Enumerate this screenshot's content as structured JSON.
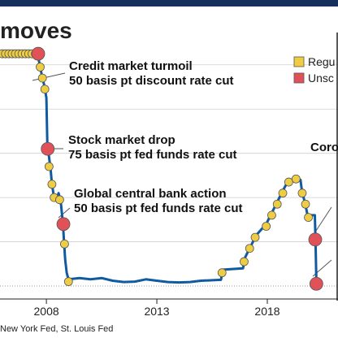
{
  "title": "moves",
  "source": "New York Fed, St. Louis Fed",
  "colors": {
    "line": "#0f5aa1",
    "regular": "#eecc44",
    "unscheduled": "#e05257",
    "grid": "#cfcfcf",
    "topbar": "#16305e"
  },
  "legend": [
    {
      "label": "Regu",
      "kind": "regular"
    },
    {
      "label": "Unsc",
      "kind": "unscheduled"
    }
  ],
  "annotations": [
    {
      "lines": [
        "Credit market turmoil",
        "50 basis pt discount rate cut"
      ],
      "x": 2007.63
    },
    {
      "lines": [
        "Stock market drop",
        "75 basis pt fed funds rate cut"
      ],
      "x": 2008.06
    },
    {
      "lines": [
        "Global central bank action",
        "50 basis pt fed funds rate cut"
      ],
      "x": 2008.77
    },
    {
      "lines": [
        "Coro"
      ],
      "x": 2020.2
    }
  ],
  "chart_data": {
    "type": "line",
    "xlim": [
      2005.9,
      2021.2
    ],
    "ylim": [
      0,
      5.4
    ],
    "xticks": [
      {
        "value": 2008,
        "label": "2008"
      },
      {
        "value": 2013,
        "label": "2013"
      },
      {
        "value": 2018,
        "label": "2018"
      }
    ],
    "grid": true,
    "series": [
      {
        "type": "line",
        "points": [
          [
            2005.9,
            5.25
          ],
          [
            2007.6,
            5.25
          ],
          [
            2007.7,
            5.0
          ],
          [
            2007.8,
            4.75
          ],
          [
            2007.92,
            4.5
          ],
          [
            2008.0,
            4.25
          ],
          [
            2008.05,
            3.0
          ],
          [
            2008.1,
            3.0
          ],
          [
            2008.2,
            2.6
          ],
          [
            2008.25,
            2.3
          ],
          [
            2008.35,
            2.0
          ],
          [
            2008.45,
            1.95
          ],
          [
            2008.55,
            2.1
          ],
          [
            2008.65,
            1.9
          ],
          [
            2008.75,
            1.4
          ],
          [
            2008.8,
            1.0
          ],
          [
            2008.85,
            0.6
          ],
          [
            2008.92,
            0.3
          ],
          [
            2009.0,
            0.15
          ],
          [
            2009.5,
            0.18
          ],
          [
            2010.0,
            0.15
          ],
          [
            2010.5,
            0.18
          ],
          [
            2011.0,
            0.12
          ],
          [
            2011.5,
            0.09
          ],
          [
            2012.0,
            0.1
          ],
          [
            2012.5,
            0.15
          ],
          [
            2013.0,
            0.12
          ],
          [
            2013.5,
            0.09
          ],
          [
            2014.0,
            0.08
          ],
          [
            2014.5,
            0.09
          ],
          [
            2015.0,
            0.12
          ],
          [
            2015.9,
            0.14
          ],
          [
            2016.0,
            0.37
          ],
          [
            2016.9,
            0.4
          ],
          [
            2017.0,
            0.65
          ],
          [
            2017.25,
            0.9
          ],
          [
            2017.5,
            1.15
          ],
          [
            2017.95,
            1.4
          ],
          [
            2018.2,
            1.65
          ],
          [
            2018.45,
            1.9
          ],
          [
            2018.7,
            2.15
          ],
          [
            2018.97,
            2.4
          ],
          [
            2019.5,
            2.4
          ],
          [
            2019.58,
            2.1
          ],
          [
            2019.7,
            1.9
          ],
          [
            2019.82,
            1.6
          ],
          [
            2020.15,
            1.6
          ],
          [
            2020.18,
            1.05
          ],
          [
            2020.22,
            0.08
          ],
          [
            2020.4,
            0.05
          ]
        ]
      }
    ],
    "markers": [
      {
        "x": 2006.0,
        "y": 5.25,
        "kind": "regular"
      },
      {
        "x": 2006.15,
        "y": 5.25,
        "kind": "regular"
      },
      {
        "x": 2006.3,
        "y": 5.25,
        "kind": "regular"
      },
      {
        "x": 2006.45,
        "y": 5.25,
        "kind": "regular"
      },
      {
        "x": 2006.6,
        "y": 5.25,
        "kind": "regular"
      },
      {
        "x": 2006.75,
        "y": 5.25,
        "kind": "regular"
      },
      {
        "x": 2006.9,
        "y": 5.25,
        "kind": "regular"
      },
      {
        "x": 2007.05,
        "y": 5.25,
        "kind": "regular"
      },
      {
        "x": 2007.2,
        "y": 5.25,
        "kind": "regular"
      },
      {
        "x": 2007.35,
        "y": 5.25,
        "kind": "regular"
      },
      {
        "x": 2007.5,
        "y": 5.25,
        "kind": "regular"
      },
      {
        "x": 2007.63,
        "y": 5.25,
        "kind": "unscheduled"
      },
      {
        "x": 2007.72,
        "y": 4.95,
        "kind": "regular"
      },
      {
        "x": 2007.82,
        "y": 4.7,
        "kind": "regular"
      },
      {
        "x": 2007.93,
        "y": 4.45,
        "kind": "regular"
      },
      {
        "x": 2008.06,
        "y": 3.1,
        "kind": "unscheduled"
      },
      {
        "x": 2008.12,
        "y": 2.7,
        "kind": "regular"
      },
      {
        "x": 2008.25,
        "y": 2.3,
        "kind": "regular"
      },
      {
        "x": 2008.35,
        "y": 2.0,
        "kind": "regular"
      },
      {
        "x": 2008.6,
        "y": 1.95,
        "kind": "regular"
      },
      {
        "x": 2008.77,
        "y": 1.4,
        "kind": "unscheduled"
      },
      {
        "x": 2008.82,
        "y": 0.95,
        "kind": "regular"
      },
      {
        "x": 2009.0,
        "y": 0.1,
        "kind": "regular"
      },
      {
        "x": 2015.95,
        "y": 0.3,
        "kind": "regular"
      },
      {
        "x": 2016.95,
        "y": 0.55,
        "kind": "regular"
      },
      {
        "x": 2017.2,
        "y": 0.85,
        "kind": "regular"
      },
      {
        "x": 2017.45,
        "y": 1.1,
        "kind": "regular"
      },
      {
        "x": 2017.95,
        "y": 1.35,
        "kind": "regular"
      },
      {
        "x": 2018.2,
        "y": 1.6,
        "kind": "regular"
      },
      {
        "x": 2018.45,
        "y": 1.85,
        "kind": "regular"
      },
      {
        "x": 2018.7,
        "y": 2.1,
        "kind": "regular"
      },
      {
        "x": 2018.97,
        "y": 2.35,
        "kind": "regular"
      },
      {
        "x": 2019.3,
        "y": 2.42,
        "kind": "regular"
      },
      {
        "x": 2019.58,
        "y": 2.1,
        "kind": "regular"
      },
      {
        "x": 2019.73,
        "y": 1.85,
        "kind": "regular"
      },
      {
        "x": 2019.86,
        "y": 1.55,
        "kind": "regular"
      },
      {
        "x": 2020.17,
        "y": 1.05,
        "kind": "unscheduled"
      },
      {
        "x": 2020.22,
        "y": 0.05,
        "kind": "unscheduled"
      }
    ]
  }
}
